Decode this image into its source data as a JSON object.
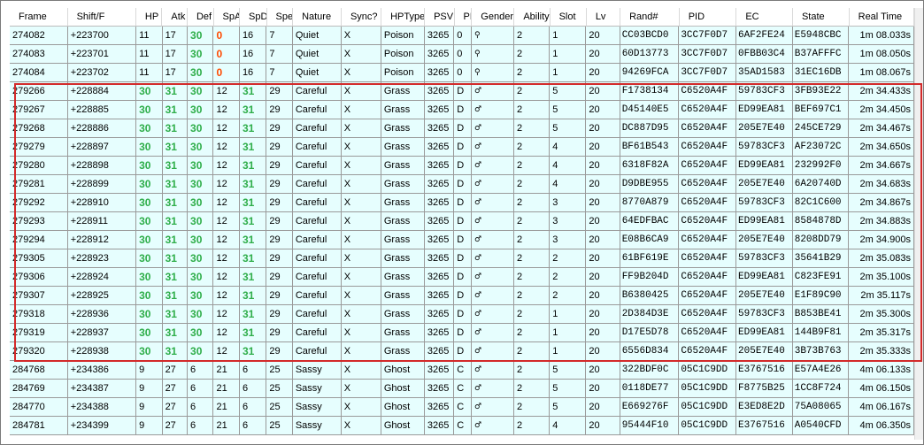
{
  "columns": [
    {
      "key": "frame",
      "label": "Frame",
      "w": 67
    },
    {
      "key": "shift",
      "label": "Shift/F",
      "w": 79
    },
    {
      "key": "hp",
      "label": "HP",
      "w": 30
    },
    {
      "key": "atk",
      "label": "Atk",
      "w": 29
    },
    {
      "key": "def",
      "label": "Def",
      "w": 30
    },
    {
      "key": "spa",
      "label": "SpA",
      "w": 30
    },
    {
      "key": "spd",
      "label": "SpD",
      "w": 31
    },
    {
      "key": "spe",
      "label": "Spe",
      "w": 30
    },
    {
      "key": "nature",
      "label": "Nature",
      "w": 56
    },
    {
      "key": "sync",
      "label": "Sync?",
      "w": 46
    },
    {
      "key": "hptype",
      "label": "HPType",
      "w": 50
    },
    {
      "key": "psv",
      "label": "PSV",
      "w": 34
    },
    {
      "key": "pf",
      "label": "PF",
      "w": 20
    },
    {
      "key": "gender",
      "label": "Gender",
      "w": 49
    },
    {
      "key": "ability",
      "label": "Ability",
      "w": 41
    },
    {
      "key": "slot",
      "label": "Slot",
      "w": 42
    },
    {
      "key": "lv",
      "label": "Lv",
      "w": 39
    },
    {
      "key": "rand",
      "label": "Rand#",
      "w": 68
    },
    {
      "key": "pid",
      "label": "PID",
      "w": 66
    },
    {
      "key": "ec",
      "label": "EC",
      "w": 65
    },
    {
      "key": "state",
      "label": "State",
      "w": 65
    },
    {
      "key": "time",
      "label": "Real Time",
      "w": 75
    }
  ],
  "colors": {
    "max_iv": "#2fae4a",
    "zero_iv": "#ff4a00",
    "selection": "#d32a2a",
    "row_bg": "#e6fefe"
  },
  "gender_icons": {
    "genderless": "genderless-icon",
    "male": "male-icon"
  },
  "rows": [
    {
      "frame": "274082",
      "shift": "+223700",
      "hp": "11",
      "atk": "17",
      "def": "30",
      "spa": "0",
      "spd": "16",
      "spe": "7",
      "nature": "Quiet",
      "sync": "X",
      "hptype": "Poison",
      "psv": "3265",
      "pf": "0",
      "gender": "⚲",
      "ability": "2",
      "slot": "1",
      "lv": "20",
      "rand": "CC03BCD0",
      "pid": "3CC7F0D7",
      "ec": "6AF2FE24",
      "state": "E5948CBC",
      "time": "1m 08.033s"
    },
    {
      "frame": "274083",
      "shift": "+223701",
      "hp": "11",
      "atk": "17",
      "def": "30",
      "spa": "0",
      "spd": "16",
      "spe": "7",
      "nature": "Quiet",
      "sync": "X",
      "hptype": "Poison",
      "psv": "3265",
      "pf": "0",
      "gender": "⚲",
      "ability": "2",
      "slot": "1",
      "lv": "20",
      "rand": "60D13773",
      "pid": "3CC7F0D7",
      "ec": "0FBB03C4",
      "state": "B37AFFFC",
      "time": "1m 08.050s"
    },
    {
      "frame": "274084",
      "shift": "+223702",
      "hp": "11",
      "atk": "17",
      "def": "30",
      "spa": "0",
      "spd": "16",
      "spe": "7",
      "nature": "Quiet",
      "sync": "X",
      "hptype": "Poison",
      "psv": "3265",
      "pf": "0",
      "gender": "⚲",
      "ability": "2",
      "slot": "1",
      "lv": "20",
      "rand": "94269FCA",
      "pid": "3CC7F0D7",
      "ec": "35AD1583",
      "state": "31EC16DB",
      "time": "1m 08.067s"
    },
    {
      "frame": "279266",
      "shift": "+228884",
      "hp": "30",
      "atk": "31",
      "def": "30",
      "spa": "12",
      "spd": "31",
      "spe": "29",
      "nature": "Careful",
      "sync": "X",
      "hptype": "Grass",
      "psv": "3265",
      "pf": "D",
      "gender": "♂",
      "ability": "2",
      "slot": "5",
      "lv": "20",
      "rand": "F1738134",
      "pid": "C6520A4F",
      "ec": "59783CF3",
      "state": "3FB93E22",
      "time": "2m 34.433s"
    },
    {
      "frame": "279267",
      "shift": "+228885",
      "hp": "30",
      "atk": "31",
      "def": "30",
      "spa": "12",
      "spd": "31",
      "spe": "29",
      "nature": "Careful",
      "sync": "X",
      "hptype": "Grass",
      "psv": "3265",
      "pf": "D",
      "gender": "♂",
      "ability": "2",
      "slot": "5",
      "lv": "20",
      "rand": "D45140E5",
      "pid": "C6520A4F",
      "ec": "ED99EA81",
      "state": "BEF697C1",
      "time": "2m 34.450s"
    },
    {
      "frame": "279268",
      "shift": "+228886",
      "hp": "30",
      "atk": "31",
      "def": "30",
      "spa": "12",
      "spd": "31",
      "spe": "29",
      "nature": "Careful",
      "sync": "X",
      "hptype": "Grass",
      "psv": "3265",
      "pf": "D",
      "gender": "♂",
      "ability": "2",
      "slot": "5",
      "lv": "20",
      "rand": "DC887D95",
      "pid": "C6520A4F",
      "ec": "205E7E40",
      "state": "245CE729",
      "time": "2m 34.467s"
    },
    {
      "frame": "279279",
      "shift": "+228897",
      "hp": "30",
      "atk": "31",
      "def": "30",
      "spa": "12",
      "spd": "31",
      "spe": "29",
      "nature": "Careful",
      "sync": "X",
      "hptype": "Grass",
      "psv": "3265",
      "pf": "D",
      "gender": "♂",
      "ability": "2",
      "slot": "4",
      "lv": "20",
      "rand": "BF61B543",
      "pid": "C6520A4F",
      "ec": "59783CF3",
      "state": "AF23072C",
      "time": "2m 34.650s"
    },
    {
      "frame": "279280",
      "shift": "+228898",
      "hp": "30",
      "atk": "31",
      "def": "30",
      "spa": "12",
      "spd": "31",
      "spe": "29",
      "nature": "Careful",
      "sync": "X",
      "hptype": "Grass",
      "psv": "3265",
      "pf": "D",
      "gender": "♂",
      "ability": "2",
      "slot": "4",
      "lv": "20",
      "rand": "6318F82A",
      "pid": "C6520A4F",
      "ec": "ED99EA81",
      "state": "232992F0",
      "time": "2m 34.667s"
    },
    {
      "frame": "279281",
      "shift": "+228899",
      "hp": "30",
      "atk": "31",
      "def": "30",
      "spa": "12",
      "spd": "31",
      "spe": "29",
      "nature": "Careful",
      "sync": "X",
      "hptype": "Grass",
      "psv": "3265",
      "pf": "D",
      "gender": "♂",
      "ability": "2",
      "slot": "4",
      "lv": "20",
      "rand": "D9DBE955",
      "pid": "C6520A4F",
      "ec": "205E7E40",
      "state": "6A20740D",
      "time": "2m 34.683s"
    },
    {
      "frame": "279292",
      "shift": "+228910",
      "hp": "30",
      "atk": "31",
      "def": "30",
      "spa": "12",
      "spd": "31",
      "spe": "29",
      "nature": "Careful",
      "sync": "X",
      "hptype": "Grass",
      "psv": "3265",
      "pf": "D",
      "gender": "♂",
      "ability": "2",
      "slot": "3",
      "lv": "20",
      "rand": "8770A879",
      "pid": "C6520A4F",
      "ec": "59783CF3",
      "state": "82C1C600",
      "time": "2m 34.867s"
    },
    {
      "frame": "279293",
      "shift": "+228911",
      "hp": "30",
      "atk": "31",
      "def": "30",
      "spa": "12",
      "spd": "31",
      "spe": "29",
      "nature": "Careful",
      "sync": "X",
      "hptype": "Grass",
      "psv": "3265",
      "pf": "D",
      "gender": "♂",
      "ability": "2",
      "slot": "3",
      "lv": "20",
      "rand": "64EDFBAC",
      "pid": "C6520A4F",
      "ec": "ED99EA81",
      "state": "8584878D",
      "time": "2m 34.883s"
    },
    {
      "frame": "279294",
      "shift": "+228912",
      "hp": "30",
      "atk": "31",
      "def": "30",
      "spa": "12",
      "spd": "31",
      "spe": "29",
      "nature": "Careful",
      "sync": "X",
      "hptype": "Grass",
      "psv": "3265",
      "pf": "D",
      "gender": "♂",
      "ability": "2",
      "slot": "3",
      "lv": "20",
      "rand": "E08B6CA9",
      "pid": "C6520A4F",
      "ec": "205E7E40",
      "state": "8208DD79",
      "time": "2m 34.900s"
    },
    {
      "frame": "279305",
      "shift": "+228923",
      "hp": "30",
      "atk": "31",
      "def": "30",
      "spa": "12",
      "spd": "31",
      "spe": "29",
      "nature": "Careful",
      "sync": "X",
      "hptype": "Grass",
      "psv": "3265",
      "pf": "D",
      "gender": "♂",
      "ability": "2",
      "slot": "2",
      "lv": "20",
      "rand": "61BF619E",
      "pid": "C6520A4F",
      "ec": "59783CF3",
      "state": "35641B29",
      "time": "2m 35.083s"
    },
    {
      "frame": "279306",
      "shift": "+228924",
      "hp": "30",
      "atk": "31",
      "def": "30",
      "spa": "12",
      "spd": "31",
      "spe": "29",
      "nature": "Careful",
      "sync": "X",
      "hptype": "Grass",
      "psv": "3265",
      "pf": "D",
      "gender": "♂",
      "ability": "2",
      "slot": "2",
      "lv": "20",
      "rand": "FF9B204D",
      "pid": "C6520A4F",
      "ec": "ED99EA81",
      "state": "C823FE91",
      "time": "2m 35.100s"
    },
    {
      "frame": "279307",
      "shift": "+228925",
      "hp": "30",
      "atk": "31",
      "def": "30",
      "spa": "12",
      "spd": "31",
      "spe": "29",
      "nature": "Careful",
      "sync": "X",
      "hptype": "Grass",
      "psv": "3265",
      "pf": "D",
      "gender": "♂",
      "ability": "2",
      "slot": "2",
      "lv": "20",
      "rand": "B6380425",
      "pid": "C6520A4F",
      "ec": "205E7E40",
      "state": "E1F89C90",
      "time": "2m 35.117s"
    },
    {
      "frame": "279318",
      "shift": "+228936",
      "hp": "30",
      "atk": "31",
      "def": "30",
      "spa": "12",
      "spd": "31",
      "spe": "29",
      "nature": "Careful",
      "sync": "X",
      "hptype": "Grass",
      "psv": "3265",
      "pf": "D",
      "gender": "♂",
      "ability": "2",
      "slot": "1",
      "lv": "20",
      "rand": "2D384D3E",
      "pid": "C6520A4F",
      "ec": "59783CF3",
      "state": "B853BE41",
      "time": "2m 35.300s"
    },
    {
      "frame": "279319",
      "shift": "+228937",
      "hp": "30",
      "atk": "31",
      "def": "30",
      "spa": "12",
      "spd": "31",
      "spe": "29",
      "nature": "Careful",
      "sync": "X",
      "hptype": "Grass",
      "psv": "3265",
      "pf": "D",
      "gender": "♂",
      "ability": "2",
      "slot": "1",
      "lv": "20",
      "rand": "D17E5D78",
      "pid": "C6520A4F",
      "ec": "ED99EA81",
      "state": "144B9F81",
      "time": "2m 35.317s"
    },
    {
      "frame": "279320",
      "shift": "+228938",
      "hp": "30",
      "atk": "31",
      "def": "30",
      "spa": "12",
      "spd": "31",
      "spe": "29",
      "nature": "Careful",
      "sync": "X",
      "hptype": "Grass",
      "psv": "3265",
      "pf": "D",
      "gender": "♂",
      "ability": "2",
      "slot": "1",
      "lv": "20",
      "rand": "6556D834",
      "pid": "C6520A4F",
      "ec": "205E7E40",
      "state": "3B73B763",
      "time": "2m 35.333s"
    },
    {
      "frame": "284768",
      "shift": "+234386",
      "hp": "9",
      "atk": "27",
      "def": "6",
      "spa": "21",
      "spd": "6",
      "spe": "25",
      "nature": "Sassy",
      "sync": "X",
      "hptype": "Ghost",
      "psv": "3265",
      "pf": "C",
      "gender": "♂",
      "ability": "2",
      "slot": "5",
      "lv": "20",
      "rand": "322BDF0C",
      "pid": "05C1C9DD",
      "ec": "E3767516",
      "state": "E57A4E26",
      "time": "4m 06.133s"
    },
    {
      "frame": "284769",
      "shift": "+234387",
      "hp": "9",
      "atk": "27",
      "def": "6",
      "spa": "21",
      "spd": "6",
      "spe": "25",
      "nature": "Sassy",
      "sync": "X",
      "hptype": "Ghost",
      "psv": "3265",
      "pf": "C",
      "gender": "♂",
      "ability": "2",
      "slot": "5",
      "lv": "20",
      "rand": "0118DE77",
      "pid": "05C1C9DD",
      "ec": "F8775B25",
      "state": "1CC8F724",
      "time": "4m 06.150s"
    },
    {
      "frame": "284770",
      "shift": "+234388",
      "hp": "9",
      "atk": "27",
      "def": "6",
      "spa": "21",
      "spd": "6",
      "spe": "25",
      "nature": "Sassy",
      "sync": "X",
      "hptype": "Ghost",
      "psv": "3265",
      "pf": "C",
      "gender": "♂",
      "ability": "2",
      "slot": "5",
      "lv": "20",
      "rand": "E669276F",
      "pid": "05C1C9DD",
      "ec": "E3ED8E2D",
      "state": "75A08065",
      "time": "4m 06.167s"
    },
    {
      "frame": "284781",
      "shift": "+234399",
      "hp": "9",
      "atk": "27",
      "def": "6",
      "spa": "21",
      "spd": "6",
      "spe": "25",
      "nature": "Sassy",
      "sync": "X",
      "hptype": "Ghost",
      "psv": "3265",
      "pf": "C",
      "gender": "♂",
      "ability": "2",
      "slot": "4",
      "lv": "20",
      "rand": "95444F10",
      "pid": "05C1C9DD",
      "ec": "E3767516",
      "state": "A0540CFD",
      "time": "4m 06.350s"
    }
  ]
}
